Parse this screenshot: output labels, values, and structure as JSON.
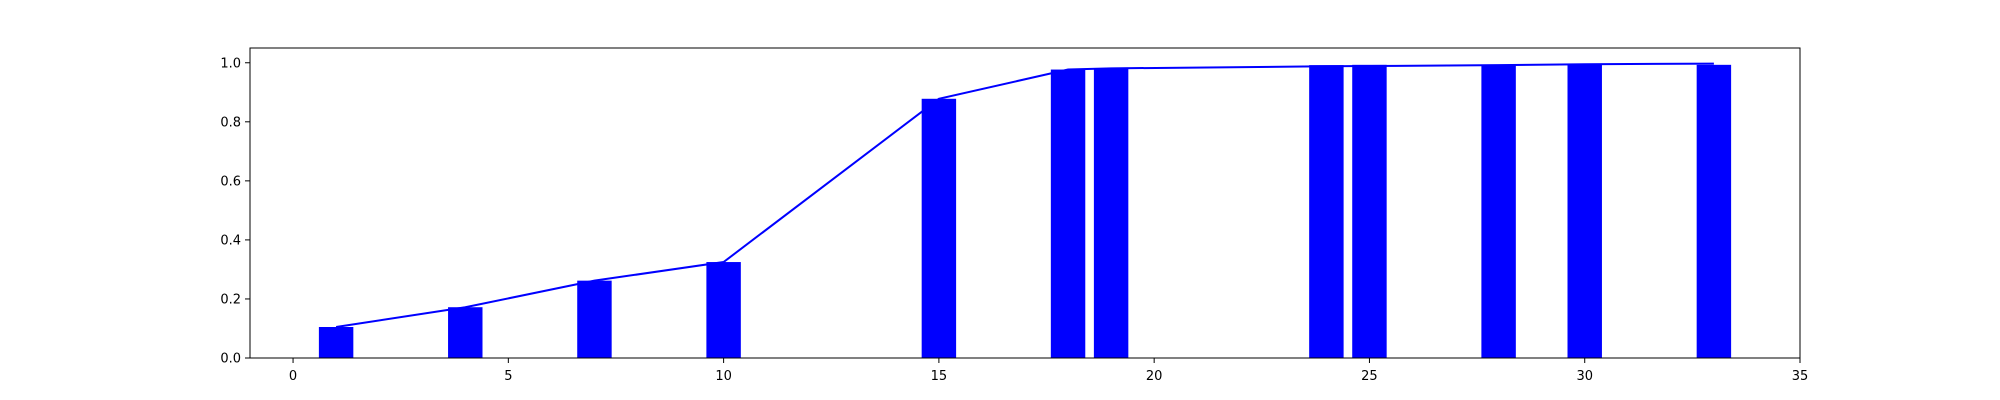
{
  "chart_data": {
    "type": "bar",
    "title": "",
    "xlabel": "",
    "ylabel": "",
    "xlim": [
      -1,
      35
    ],
    "ylim": [
      0,
      1.05
    ],
    "xticks": [
      0,
      5,
      10,
      15,
      20,
      25,
      30,
      35
    ],
    "yticks": [
      0.0,
      0.2,
      0.4,
      0.6,
      0.8,
      1.0
    ],
    "xtick_labels": [
      "0",
      "5",
      "10",
      "15",
      "20",
      "25",
      "30",
      "35"
    ],
    "ytick_labels": [
      "0.0",
      "0.2",
      "0.4",
      "0.6",
      "0.8",
      "1.0"
    ],
    "grid": false,
    "bar_width": 0.8,
    "bar_color": "#0000ff",
    "line_color": "#0000ff",
    "bars": {
      "x": [
        1,
        4,
        7,
        10,
        15,
        18,
        19,
        24,
        25,
        28,
        30,
        33
      ],
      "values": [
        0.105,
        0.172,
        0.262,
        0.325,
        0.878,
        0.977,
        0.981,
        0.992,
        0.993,
        0.994,
        0.997,
        0.993
      ]
    },
    "line": {
      "x": [
        1,
        4,
        7,
        10,
        15,
        18,
        19,
        24,
        25,
        28,
        30,
        33
      ],
      "values": [
        0.105,
        0.172,
        0.262,
        0.325,
        0.878,
        0.977,
        0.981,
        0.988,
        0.989,
        0.992,
        0.995,
        0.997
      ]
    }
  }
}
